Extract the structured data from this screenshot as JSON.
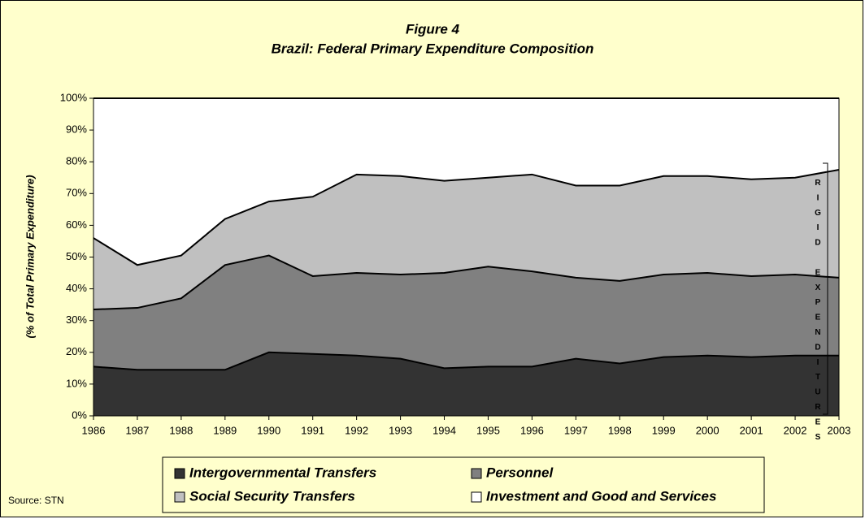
{
  "chart_data": {
    "type": "stacked_area",
    "title": "Figure 4",
    "subtitle": "Brazil: Federal Primary Expenditure Composition",
    "y_label": "(% of Total Primary Expenditure)",
    "source": "Source: STN",
    "annotation": "RIGID EXPENDITURES",
    "x": [
      1986,
      1987,
      1988,
      1989,
      1990,
      1991,
      1992,
      1993,
      1994,
      1995,
      1996,
      1997,
      1998,
      1999,
      2000,
      2001,
      2002,
      2003
    ],
    "xlim": [
      1986,
      2003
    ],
    "xticks": [
      1986,
      1987,
      1988,
      1989,
      1990,
      1991,
      1992,
      1993,
      1994,
      1995,
      1996,
      1997,
      1998,
      1999,
      2000,
      2001,
      2002,
      2003
    ],
    "ylim": [
      0,
      100
    ],
    "yticks": [
      {
        "value": 0,
        "label": "0%"
      },
      {
        "value": 10,
        "label": "10%"
      },
      {
        "value": 20,
        "label": "20%"
      },
      {
        "value": 30,
        "label": "30%"
      },
      {
        "value": 40,
        "label": "40%"
      },
      {
        "value": 50,
        "label": "50%"
      },
      {
        "value": 60,
        "label": "60%"
      },
      {
        "value": 70,
        "label": "70%"
      },
      {
        "value": 80,
        "label": "80%"
      },
      {
        "value": 90,
        "label": "90%"
      },
      {
        "value": 100,
        "label": "100%"
      }
    ],
    "legend": "bottom",
    "series": [
      {
        "name": "Intergovernmental Transfers",
        "color": "#333333",
        "values": [
          15.5,
          14.5,
          14.5,
          14.5,
          20,
          19.5,
          19,
          18,
          15,
          15.5,
          15.5,
          18,
          16.5,
          18.5,
          19,
          18.5,
          19,
          19
        ]
      },
      {
        "name": "Personnel",
        "color": "#808080",
        "values": [
          18,
          19.5,
          22.5,
          33,
          30.5,
          24.5,
          26,
          26.5,
          30,
          31.5,
          30,
          25.5,
          26,
          26,
          26,
          25.5,
          25.5,
          24.5
        ]
      },
      {
        "name": "Social Security Transfers",
        "color": "#c0c0c0",
        "values": [
          22.5,
          13.5,
          13.5,
          14.5,
          17,
          25,
          31,
          31,
          29,
          28,
          30.5,
          29,
          30,
          31,
          30.5,
          30.5,
          30.5,
          34
        ]
      },
      {
        "name": "Investment and Good and Services",
        "color": "#ffffff",
        "values": [
          44,
          52.5,
          49.5,
          38,
          32.5,
          31,
          24,
          24.5,
          26,
          25,
          24,
          27.5,
          27.5,
          24.5,
          24.5,
          25.5,
          25,
          22.5
        ]
      }
    ]
  }
}
